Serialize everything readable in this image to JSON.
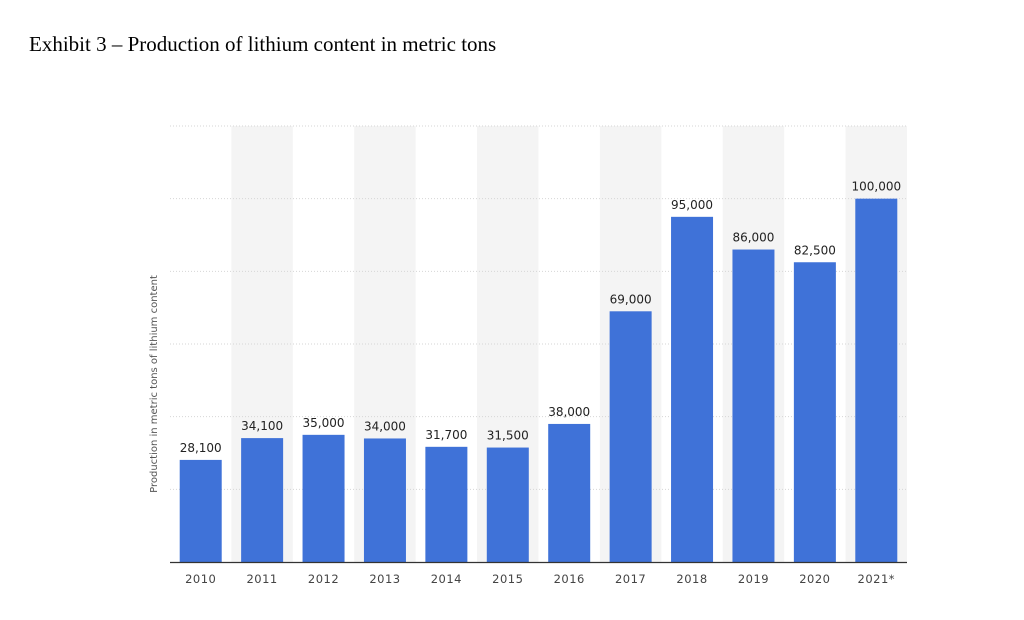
{
  "header": {
    "title": "Exhibit 3 – Production of lithium content in metric tons"
  },
  "chart_data": {
    "type": "bar",
    "title": "",
    "xlabel": "",
    "ylabel": "Production in metric tons of lithium content",
    "categories": [
      "2010",
      "2011",
      "2012",
      "2013",
      "2014",
      "2015",
      "2016",
      "2017",
      "2018",
      "2019",
      "2020",
      "2021*"
    ],
    "values": [
      28100,
      34100,
      35000,
      34000,
      31700,
      31500,
      38000,
      69000,
      95000,
      86000,
      82500,
      100000
    ],
    "value_labels": [
      "28,100",
      "34,100",
      "35,000",
      "34,000",
      "31,700",
      "31,500",
      "38,000",
      "69,000",
      "95,000",
      "86,000",
      "82,500",
      "100,000"
    ],
    "ylim": [
      0,
      120000
    ],
    "grid": true,
    "y_tick_labels_shown": false,
    "bar_color": "#3f72d8",
    "alternating_band_color": "#f4f4f4",
    "legend": "none"
  }
}
